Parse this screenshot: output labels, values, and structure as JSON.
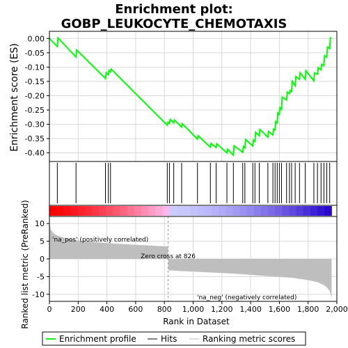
{
  "chart_data": {
    "type": "line",
    "title": "Enrichment plot:",
    "subtitle": "GOBP_LEUKOCYTE_CHEMOTAXIS",
    "colors": {
      "es_line": "#00ff00",
      "hits": "#000000",
      "metric_fill": "#bebebe",
      "pos_label": "#ff0000",
      "neg_label": "#0000ff",
      "bar_pos_dark": "#ff0000",
      "bar_pos_light": "#ffbbee",
      "bar_neg_light": "#ccccff",
      "bar_neg_dark": "#2200cc"
    },
    "es_panel": {
      "ylabel": "Enrichment score (ES)",
      "ylim": [
        -0.43,
        0.025
      ],
      "yticks": [
        0.0,
        -0.05,
        -0.1,
        -0.15,
        -0.2,
        -0.25,
        -0.3,
        -0.35,
        -0.4
      ],
      "ytick_labels": [
        "0.00",
        "-0.05",
        "-0.10",
        "-0.15",
        "-0.20",
        "-0.25",
        "-0.30",
        "-0.35",
        "-0.40"
      ],
      "grid": true,
      "x": [
        0,
        55,
        60,
        185,
        190,
        390,
        395,
        410,
        415,
        425,
        430,
        820,
        825,
        835,
        840,
        865,
        870,
        920,
        925,
        1030,
        1035,
        1120,
        1125,
        1160,
        1165,
        1235,
        1240,
        1280,
        1285,
        1345,
        1350,
        1360,
        1365,
        1415,
        1420,
        1430,
        1435,
        1460,
        1465,
        1520,
        1525,
        1555,
        1560,
        1570,
        1575,
        1585,
        1590,
        1600,
        1605,
        1615,
        1620,
        1650,
        1655,
        1670,
        1675,
        1685,
        1690,
        1710,
        1715,
        1740,
        1745,
        1780,
        1785,
        1840,
        1845,
        1865,
        1870,
        1890,
        1895,
        1910,
        1915,
        1930,
        1935,
        1950,
        1955,
        1963
      ],
      "y": [
        0.0,
        -0.028,
        0.002,
        -0.065,
        -0.04,
        -0.14,
        -0.12,
        -0.127,
        -0.112,
        -0.117,
        -0.107,
        -0.303,
        -0.293,
        -0.297,
        -0.283,
        -0.295,
        -0.285,
        -0.31,
        -0.298,
        -0.352,
        -0.34,
        -0.38,
        -0.367,
        -0.381,
        -0.368,
        -0.4,
        -0.387,
        -0.408,
        -0.375,
        -0.398,
        -0.378,
        -0.383,
        -0.353,
        -0.376,
        -0.355,
        -0.36,
        -0.328,
        -0.34,
        -0.318,
        -0.345,
        -0.325,
        -0.337,
        -0.317,
        -0.32,
        -0.29,
        -0.295,
        -0.26,
        -0.265,
        -0.242,
        -0.248,
        -0.205,
        -0.215,
        -0.188,
        -0.193,
        -0.182,
        -0.186,
        -0.15,
        -0.165,
        -0.133,
        -0.143,
        -0.12,
        -0.143,
        -0.113,
        -0.148,
        -0.12,
        -0.125,
        -0.102,
        -0.11,
        -0.09,
        -0.095,
        -0.06,
        -0.065,
        -0.03,
        -0.035,
        0.002,
        0.002
      ]
    },
    "hits": [
      55,
      185,
      390,
      410,
      425,
      820,
      835,
      865,
      920,
      1030,
      1120,
      1160,
      1235,
      1280,
      1345,
      1360,
      1415,
      1430,
      1460,
      1520,
      1555,
      1570,
      1585,
      1600,
      1615,
      1650,
      1670,
      1685,
      1710,
      1740,
      1780,
      1840,
      1865,
      1890,
      1910,
      1930,
      1950
    ],
    "metric_panel": {
      "ylabel": "Ranked list metric (PreRanked)",
      "xlabel": "Rank in Dataset",
      "xlim": [
        0,
        2000
      ],
      "ylim": [
        -12,
        12
      ],
      "yticks": [
        10,
        5,
        0,
        -5,
        -10
      ],
      "xticks": [
        0,
        200,
        400,
        600,
        800,
        1000,
        1200,
        1400,
        1600,
        1800,
        2000
      ],
      "xtick_labels": [
        "0",
        "200",
        "400",
        "600",
        "800",
        "1,000",
        "1,200",
        "1,400",
        "1,600",
        "1,800",
        "2,000"
      ],
      "n_ranks": 1963,
      "zero_cross": 826,
      "zero_cross_label": "Zero cross at 826",
      "pos_label": "'na_pos' (positively correlated)",
      "neg_label": "'na_neg' (negatively correlated)",
      "curve_x": [
        0,
        10,
        30,
        60,
        100,
        150,
        200,
        300,
        400,
        500,
        600,
        700,
        826,
        827,
        900,
        1000,
        1100,
        1200,
        1300,
        1400,
        1500,
        1600,
        1700,
        1800,
        1870,
        1910,
        1935,
        1950,
        1960,
        1963
      ],
      "curve_y": [
        10.2,
        8.2,
        7.2,
        6.5,
        6.0,
        5.6,
        5.2,
        4.8,
        4.5,
        4.2,
        4.0,
        3.8,
        3.5,
        -3.2,
        -3.4,
        -3.6,
        -3.8,
        -4.0,
        -4.2,
        -4.5,
        -4.8,
        -5.1,
        -5.4,
        -6.0,
        -6.6,
        -7.4,
        -8.2,
        -9.2,
        -10.5,
        -11.2
      ]
    },
    "legend": {
      "items": [
        "Enrichment profile",
        "Hits",
        "Ranking metric scores"
      ]
    }
  }
}
